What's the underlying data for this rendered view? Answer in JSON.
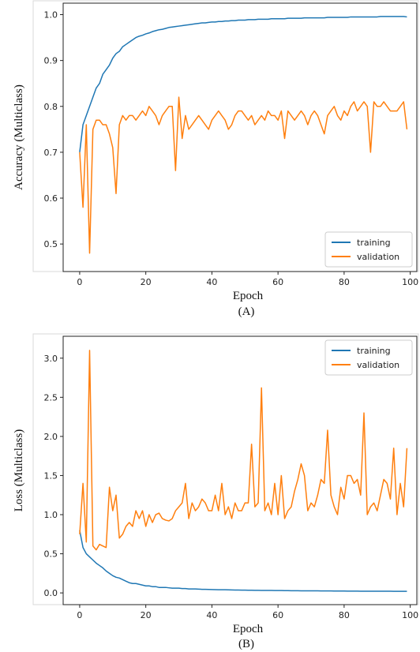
{
  "colors": {
    "training": "#1f77b4",
    "validation": "#ff7f0e"
  },
  "chart_data": [
    {
      "type": "line",
      "caption": "(A)",
      "xlabel": "Epoch",
      "ylabel": "Accuracy (Multiclass)",
      "xlim": [
        -5,
        102
      ],
      "ylim": [
        0.44,
        1.025
      ],
      "xticks": [
        0,
        20,
        40,
        60,
        80,
        100
      ],
      "yticks": [
        0.5,
        0.6,
        0.7,
        0.8,
        0.9,
        1.0
      ],
      "tick_format": "1",
      "legend": "lower-right",
      "x": [
        0,
        1,
        2,
        3,
        4,
        5,
        6,
        7,
        8,
        9,
        10,
        11,
        12,
        13,
        14,
        15,
        16,
        17,
        18,
        19,
        20,
        21,
        22,
        23,
        24,
        25,
        26,
        27,
        28,
        29,
        30,
        31,
        32,
        33,
        34,
        35,
        36,
        37,
        38,
        39,
        40,
        41,
        42,
        43,
        44,
        45,
        46,
        47,
        48,
        49,
        50,
        51,
        52,
        53,
        54,
        55,
        56,
        57,
        58,
        59,
        60,
        61,
        62,
        63,
        64,
        65,
        66,
        67,
        68,
        69,
        70,
        71,
        72,
        73,
        74,
        75,
        76,
        77,
        78,
        79,
        80,
        81,
        82,
        83,
        84,
        85,
        86,
        87,
        88,
        89,
        90,
        91,
        92,
        93,
        94,
        95,
        96,
        97,
        98,
        99
      ],
      "series": [
        {
          "name": "training",
          "values": [
            0.7,
            0.76,
            0.78,
            0.8,
            0.82,
            0.84,
            0.85,
            0.87,
            0.88,
            0.89,
            0.905,
            0.915,
            0.92,
            0.93,
            0.935,
            0.94,
            0.945,
            0.95,
            0.953,
            0.955,
            0.958,
            0.96,
            0.963,
            0.965,
            0.967,
            0.968,
            0.97,
            0.972,
            0.973,
            0.974,
            0.975,
            0.976,
            0.977,
            0.978,
            0.979,
            0.98,
            0.981,
            0.982,
            0.982,
            0.983,
            0.984,
            0.984,
            0.985,
            0.985,
            0.986,
            0.986,
            0.987,
            0.987,
            0.988,
            0.988,
            0.988,
            0.989,
            0.989,
            0.989,
            0.99,
            0.99,
            0.99,
            0.99,
            0.991,
            0.991,
            0.991,
            0.991,
            0.991,
            0.992,
            0.992,
            0.992,
            0.992,
            0.992,
            0.993,
            0.993,
            0.993,
            0.993,
            0.993,
            0.993,
            0.993,
            0.994,
            0.994,
            0.994,
            0.994,
            0.994,
            0.994,
            0.994,
            0.995,
            0.995,
            0.995,
            0.995,
            0.995,
            0.995,
            0.995,
            0.995,
            0.995,
            0.996,
            0.996,
            0.996,
            0.996,
            0.996,
            0.996,
            0.996,
            0.996,
            0.995
          ]
        },
        {
          "name": "validation",
          "values": [
            0.7,
            0.58,
            0.76,
            0.48,
            0.75,
            0.77,
            0.77,
            0.76,
            0.76,
            0.74,
            0.71,
            0.61,
            0.76,
            0.78,
            0.77,
            0.78,
            0.78,
            0.77,
            0.78,
            0.79,
            0.78,
            0.8,
            0.79,
            0.78,
            0.76,
            0.78,
            0.79,
            0.8,
            0.8,
            0.66,
            0.82,
            0.73,
            0.78,
            0.75,
            0.76,
            0.77,
            0.78,
            0.77,
            0.76,
            0.75,
            0.77,
            0.78,
            0.79,
            0.78,
            0.77,
            0.75,
            0.76,
            0.78,
            0.79,
            0.79,
            0.78,
            0.77,
            0.78,
            0.76,
            0.77,
            0.78,
            0.77,
            0.79,
            0.78,
            0.78,
            0.77,
            0.79,
            0.73,
            0.79,
            0.78,
            0.77,
            0.78,
            0.79,
            0.78,
            0.76,
            0.78,
            0.79,
            0.78,
            0.76,
            0.74,
            0.78,
            0.79,
            0.8,
            0.78,
            0.77,
            0.79,
            0.78,
            0.8,
            0.81,
            0.79,
            0.8,
            0.81,
            0.8,
            0.7,
            0.81,
            0.8,
            0.8,
            0.81,
            0.8,
            0.79,
            0.79,
            0.79,
            0.8,
            0.81,
            0.75
          ]
        }
      ]
    },
    {
      "type": "line",
      "caption": "(B)",
      "xlabel": "Epoch",
      "ylabel": "Loss (Multiclass)",
      "xlim": [
        -5,
        102
      ],
      "ylim": [
        -0.15,
        3.28
      ],
      "xticks": [
        0,
        20,
        40,
        60,
        80,
        100
      ],
      "yticks": [
        0.0,
        0.5,
        1.0,
        1.5,
        2.0,
        2.5,
        3.0
      ],
      "tick_format": "1",
      "legend": "top-right",
      "x": [
        0,
        1,
        2,
        3,
        4,
        5,
        6,
        7,
        8,
        9,
        10,
        11,
        12,
        13,
        14,
        15,
        16,
        17,
        18,
        19,
        20,
        21,
        22,
        23,
        24,
        25,
        26,
        27,
        28,
        29,
        30,
        31,
        32,
        33,
        34,
        35,
        36,
        37,
        38,
        39,
        40,
        41,
        42,
        43,
        44,
        45,
        46,
        47,
        48,
        49,
        50,
        51,
        52,
        53,
        54,
        55,
        56,
        57,
        58,
        59,
        60,
        61,
        62,
        63,
        64,
        65,
        66,
        67,
        68,
        69,
        70,
        71,
        72,
        73,
        74,
        75,
        76,
        77,
        78,
        79,
        80,
        81,
        82,
        83,
        84,
        85,
        86,
        87,
        88,
        89,
        90,
        91,
        92,
        93,
        94,
        95,
        96,
        97,
        98,
        99
      ],
      "series": [
        {
          "name": "training",
          "values": [
            0.8,
            0.58,
            0.5,
            0.46,
            0.42,
            0.38,
            0.35,
            0.32,
            0.28,
            0.25,
            0.22,
            0.2,
            0.19,
            0.17,
            0.15,
            0.13,
            0.12,
            0.12,
            0.11,
            0.1,
            0.09,
            0.09,
            0.08,
            0.08,
            0.07,
            0.07,
            0.07,
            0.065,
            0.06,
            0.06,
            0.06,
            0.055,
            0.055,
            0.05,
            0.05,
            0.05,
            0.048,
            0.046,
            0.045,
            0.044,
            0.043,
            0.042,
            0.041,
            0.04,
            0.04,
            0.039,
            0.038,
            0.037,
            0.036,
            0.035,
            0.035,
            0.034,
            0.034,
            0.033,
            0.033,
            0.032,
            0.032,
            0.031,
            0.031,
            0.03,
            0.03,
            0.03,
            0.029,
            0.029,
            0.028,
            0.028,
            0.028,
            0.027,
            0.027,
            0.027,
            0.026,
            0.026,
            0.026,
            0.025,
            0.025,
            0.025,
            0.025,
            0.024,
            0.024,
            0.024,
            0.024,
            0.023,
            0.023,
            0.023,
            0.023,
            0.022,
            0.022,
            0.022,
            0.022,
            0.022,
            0.021,
            0.021,
            0.021,
            0.021,
            0.021,
            0.02,
            0.02,
            0.02,
            0.02,
            0.02
          ]
        },
        {
          "name": "validation",
          "values": [
            0.75,
            1.4,
            0.65,
            3.1,
            0.6,
            0.55,
            0.62,
            0.6,
            0.58,
            1.35,
            1.05,
            1.25,
            0.7,
            0.75,
            0.85,
            0.9,
            0.85,
            1.05,
            0.95,
            1.05,
            0.85,
            1.0,
            0.9,
            1.0,
            1.02,
            0.95,
            0.93,
            0.92,
            0.95,
            1.05,
            1.1,
            1.15,
            1.4,
            0.95,
            1.15,
            1.05,
            1.1,
            1.2,
            1.15,
            1.05,
            1.05,
            1.25,
            1.05,
            1.4,
            1.0,
            1.1,
            0.95,
            1.15,
            1.05,
            1.05,
            1.15,
            1.15,
            1.9,
            1.1,
            1.15,
            2.62,
            1.05,
            1.15,
            1.0,
            1.4,
            1.0,
            1.5,
            0.95,
            1.05,
            1.1,
            1.3,
            1.45,
            1.65,
            1.5,
            1.05,
            1.15,
            1.1,
            1.25,
            1.45,
            1.4,
            2.08,
            1.25,
            1.1,
            1.0,
            1.35,
            1.2,
            1.5,
            1.5,
            1.4,
            1.45,
            1.25,
            2.3,
            1.0,
            1.1,
            1.15,
            1.05,
            1.25,
            1.45,
            1.4,
            1.2,
            1.85,
            1.0,
            1.4,
            1.1,
            1.85
          ]
        }
      ]
    }
  ]
}
